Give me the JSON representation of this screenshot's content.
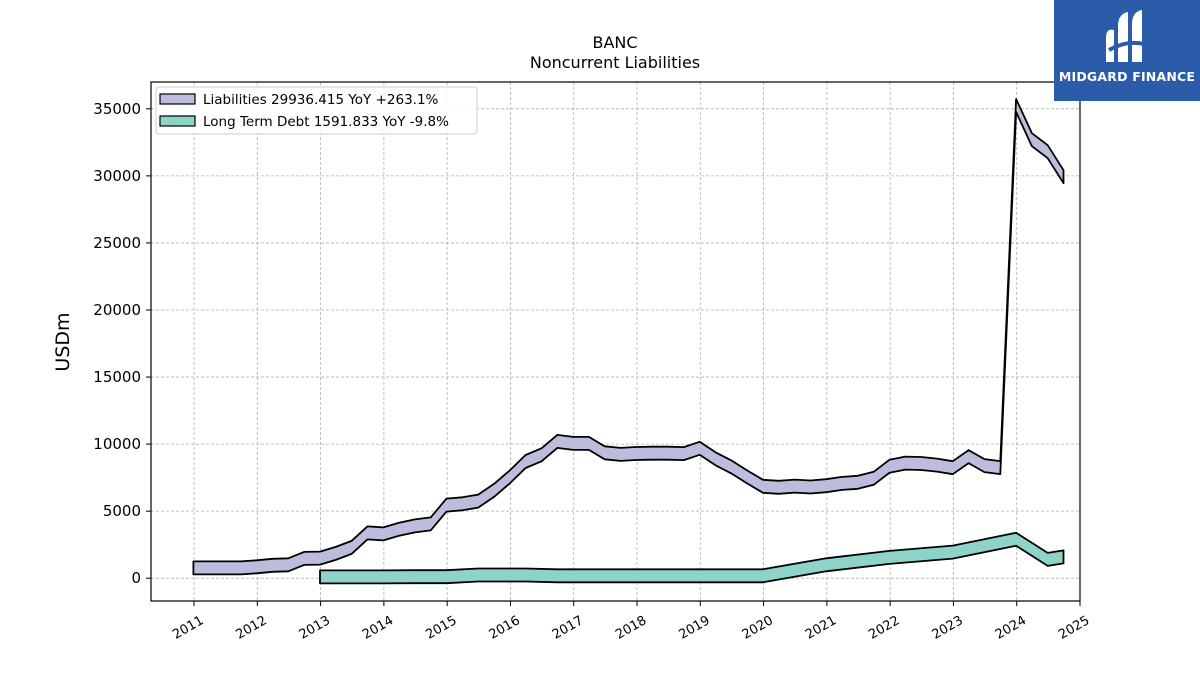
{
  "logo": {
    "name": "MIDGARD FINANCE",
    "color": "#2a5caa"
  },
  "chart_data": {
    "type": "area",
    "title": "BANC",
    "subtitle": "Noncurrent  Liabilities",
    "ylabel": "USDm",
    "xlabel": "",
    "xlim": [
      2010.32,
      2025.0
    ],
    "ylim": [
      -1700,
      37000
    ],
    "yticks": [
      0,
      5000,
      10000,
      15000,
      20000,
      25000,
      30000,
      35000
    ],
    "xticks": [
      2011,
      2012,
      2013,
      2014,
      2015,
      2016,
      2017,
      2018,
      2019,
      2020,
      2021,
      2022,
      2023,
      2024,
      2025
    ],
    "grid": true,
    "legend_position": "top-left",
    "series": [
      {
        "name": "Liabilities  29936.415 YoY +263.1%",
        "color": "#bcbddc",
        "values": [
          [
            2010.99,
            770
          ],
          [
            2011.74,
            770
          ],
          [
            2011.99,
            850
          ],
          [
            2012.24,
            960
          ],
          [
            2012.49,
            1000
          ],
          [
            2012.74,
            1480
          ],
          [
            2012.99,
            1500
          ],
          [
            2013.24,
            1850
          ],
          [
            2013.49,
            2300
          ],
          [
            2013.74,
            3380
          ],
          [
            2013.99,
            3300
          ],
          [
            2014.24,
            3650
          ],
          [
            2014.49,
            3900
          ],
          [
            2014.74,
            4050
          ],
          [
            2014.99,
            5450
          ],
          [
            2015.24,
            5550
          ],
          [
            2015.49,
            5750
          ],
          [
            2015.74,
            6550
          ],
          [
            2015.99,
            7550
          ],
          [
            2016.24,
            8700
          ],
          [
            2016.49,
            9200
          ],
          [
            2016.74,
            10200
          ],
          [
            2016.99,
            10050
          ],
          [
            2017.24,
            10050
          ],
          [
            2017.49,
            9350
          ],
          [
            2017.74,
            9230
          ],
          [
            2017.99,
            9300
          ],
          [
            2018.24,
            9320
          ],
          [
            2018.49,
            9320
          ],
          [
            2018.74,
            9290
          ],
          [
            2018.99,
            9690
          ],
          [
            2019.24,
            8900
          ],
          [
            2019.49,
            8300
          ],
          [
            2019.74,
            7550
          ],
          [
            2019.99,
            6850
          ],
          [
            2020.24,
            6780
          ],
          [
            2020.49,
            6870
          ],
          [
            2020.74,
            6800
          ],
          [
            2020.99,
            6900
          ],
          [
            2021.24,
            7070
          ],
          [
            2021.49,
            7150
          ],
          [
            2021.74,
            7450
          ],
          [
            2021.99,
            8350
          ],
          [
            2022.24,
            8580
          ],
          [
            2022.49,
            8550
          ],
          [
            2022.74,
            8430
          ],
          [
            2022.99,
            8240
          ],
          [
            2023.24,
            9070
          ],
          [
            2023.49,
            8400
          ],
          [
            2023.74,
            8250
          ],
          [
            2023.99,
            35250
          ],
          [
            2024.24,
            32700
          ],
          [
            2024.49,
            31800
          ],
          [
            2024.74,
            29936
          ]
        ]
      },
      {
        "name": "Long Term Debt  1591.833 YoY -9.8%",
        "color": "#8dd3c7",
        "values": [
          [
            2012.99,
            100
          ],
          [
            2013.49,
            100
          ],
          [
            2013.99,
            100
          ],
          [
            2014.49,
            110
          ],
          [
            2014.99,
            110
          ],
          [
            2015.49,
            240
          ],
          [
            2015.99,
            240
          ],
          [
            2016.24,
            240
          ],
          [
            2016.74,
            180
          ],
          [
            2017.24,
            180
          ],
          [
            2017.74,
            180
          ],
          [
            2018.24,
            180
          ],
          [
            2018.74,
            180
          ],
          [
            2019.24,
            180
          ],
          [
            2019.74,
            180
          ],
          [
            2019.99,
            180
          ],
          [
            2020.99,
            1000
          ],
          [
            2021.99,
            1550
          ],
          [
            2022.99,
            1950
          ],
          [
            2023.99,
            2900
          ],
          [
            2024.49,
            1400
          ],
          [
            2024.74,
            1592
          ]
        ]
      }
    ]
  }
}
